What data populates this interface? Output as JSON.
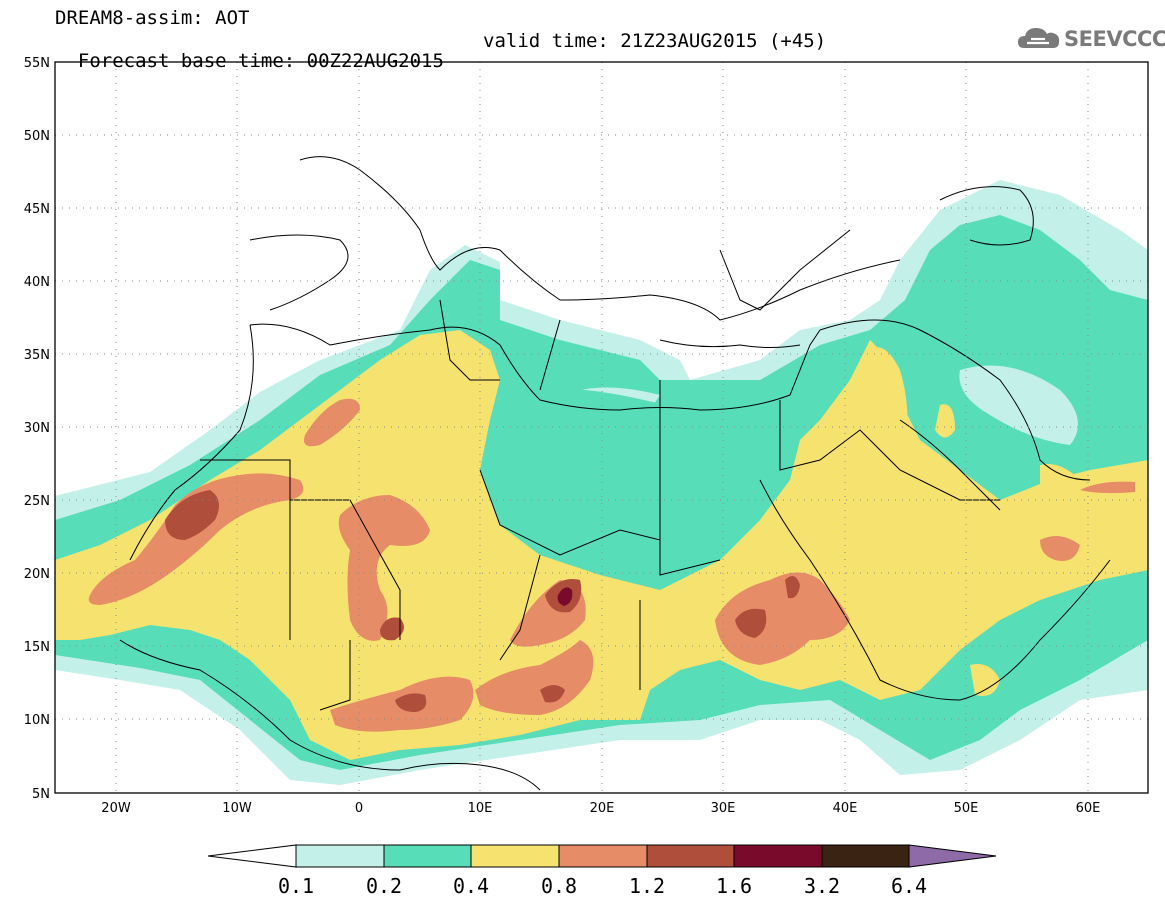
{
  "header": {
    "title": "DREAM8-assim: AOT",
    "base_time": "Forecast base time: 00Z22AUG2015",
    "valid_time": "valid time: 21Z23AUG2015 (+45)"
  },
  "logo": {
    "text": "SEEVCCC",
    "icon": "cloud-logo-icon"
  },
  "map": {
    "lat_labels": [
      "55N",
      "50N",
      "45N",
      "40N",
      "35N",
      "30N",
      "25N",
      "20N",
      "15N",
      "10N",
      "5N"
    ],
    "lon_labels": [
      "20W",
      "10W",
      "0",
      "10E",
      "20E",
      "30E",
      "40E",
      "50E",
      "60E"
    ],
    "lat_range": [
      5,
      55
    ],
    "lon_range": [
      -25,
      65
    ],
    "grid": "dotted"
  },
  "colorbar": {
    "labels": [
      "0.1",
      "0.2",
      "0.4",
      "0.8",
      "1.2",
      "1.6",
      "3.2",
      "6.4"
    ],
    "colors": [
      "#ffffff",
      "#c4f0ea",
      "#58ddb9",
      "#f5e26f",
      "#e68c66",
      "#b04e3c",
      "#7a0a2c",
      "#3a2312",
      "#8e6aa8"
    ]
  },
  "fields": {
    "colors": {
      "c1": "#c4f0ea",
      "c2": "#58ddb9",
      "c3": "#f5e26f",
      "c4": "#e68c66",
      "c5": "#b04e3c",
      "c6": "#7a0a2c"
    }
  }
}
